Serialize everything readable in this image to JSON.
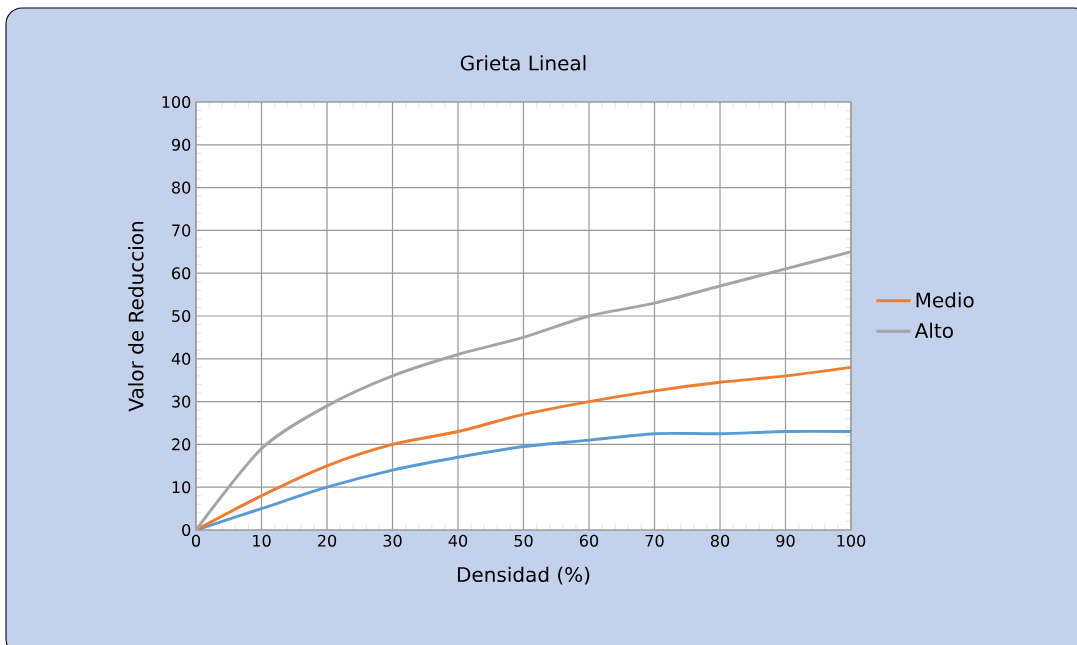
{
  "chart_data": {
    "type": "line",
    "title": "Grieta Lineal",
    "xlabel": "Densidad (%)",
    "ylabel": "Valor de Reduccion",
    "x": [
      0,
      10,
      20,
      30,
      40,
      50,
      60,
      70,
      80,
      90,
      100
    ],
    "series": [
      {
        "color": "#5b9bd5",
        "values": [
          0,
          5,
          10,
          14,
          17,
          19.5,
          21,
          22.5,
          22.5,
          23,
          23
        ]
      },
      {
        "name": "Medio",
        "color": "#ed7d31",
        "values": [
          0,
          8,
          15,
          20,
          23,
          27,
          30,
          32.5,
          34.5,
          36,
          38
        ]
      },
      {
        "name": "Alto",
        "color": "#a5a5a5",
        "values": [
          0,
          19,
          29,
          36,
          41,
          45,
          50,
          53,
          57,
          61,
          65
        ]
      }
    ],
    "xlim": [
      0,
      100
    ],
    "ylim": [
      0,
      100
    ],
    "xticks": [
      0,
      10,
      20,
      30,
      40,
      50,
      60,
      70,
      80,
      90,
      100
    ],
    "yticks": [
      0,
      10,
      20,
      30,
      40,
      50,
      60,
      70,
      80,
      90,
      100
    ],
    "grid": true,
    "legend": "right",
    "marker": "none",
    "line_style": "solid"
  }
}
